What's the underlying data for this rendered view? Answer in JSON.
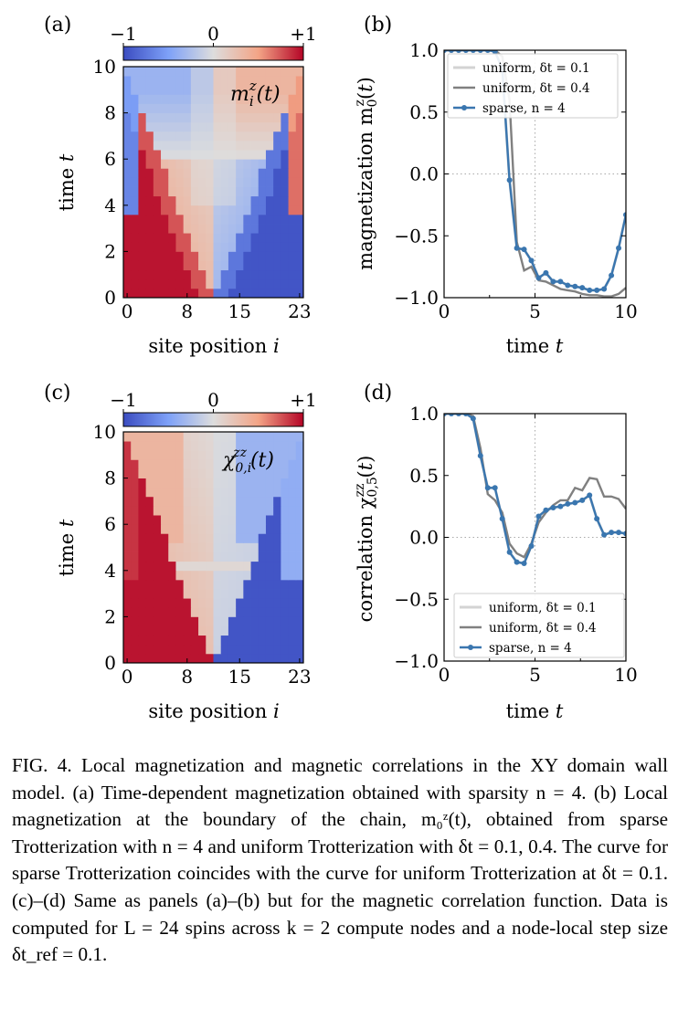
{
  "chart_data": [
    {
      "panel": "(a)",
      "type": "heatmap",
      "label": "m_i^z(t)",
      "xlabel": "site position i",
      "ylabel": "time t",
      "x_ticks": [
        "0",
        "8",
        "15",
        "23"
      ],
      "y_ticks": [
        "0",
        "2",
        "4",
        "6",
        "8",
        "10"
      ],
      "xlim": [
        0,
        23
      ],
      "ylim": [
        0,
        10
      ],
      "colorbar_ticks": [
        "−1",
        "0",
        "+1"
      ],
      "colormap": "coolwarm",
      "colors": {
        "low": "#3b4cc0",
        "mid": "#dddddd",
        "high": "#b40426"
      },
      "description_values": "domain wall: +1 on left half, −1 on right half at t=0; light cone spreading from site 12 with reflections at boundaries"
    },
    {
      "panel": "(b)",
      "type": "line",
      "xlabel": "time t",
      "ylabel": "magnetization m_0^z(t)",
      "xlim": [
        0,
        10
      ],
      "ylim": [
        -1.0,
        1.0
      ],
      "x_ticks": [
        "0",
        "5",
        "10"
      ],
      "y_ticks": [
        "1.0",
        "0.5",
        "0.0",
        "−0.5",
        "−1.0"
      ],
      "grid": "dotted at x=5, y=0",
      "legend": "top-left",
      "series": [
        {
          "name": "uniform, δt = 0.1",
          "color": "#d3d3d3",
          "x": [
            0,
            0.4,
            0.8,
            1.2,
            1.6,
            2.0,
            2.4,
            2.8,
            3.2,
            3.6,
            4.0,
            4.4,
            4.8,
            5.2,
            5.6,
            6.0,
            6.4,
            6.8,
            7.2,
            7.6,
            8.0,
            8.4,
            8.8,
            9.2,
            9.6,
            10.0
          ],
          "y": [
            1,
            1,
            1,
            1,
            1,
            1,
            1,
            0.99,
            0.85,
            -0.05,
            -0.6,
            -0.61,
            -0.7,
            -0.84,
            -0.8,
            -0.87,
            -0.87,
            -0.9,
            -0.91,
            -0.92,
            -0.94,
            -0.94,
            -0.93,
            -0.82,
            -0.6,
            -0.33
          ]
        },
        {
          "name": "uniform, δt = 0.4",
          "color": "#808080",
          "x": [
            0,
            0.4,
            0.8,
            1.2,
            1.6,
            2.0,
            2.4,
            2.8,
            3.2,
            3.6,
            4.0,
            4.4,
            4.8,
            5.2,
            5.6,
            6.0,
            6.4,
            6.8,
            7.2,
            7.6,
            8.0,
            8.4,
            8.8,
            9.2,
            9.6,
            10.0
          ],
          "y": [
            1,
            1,
            1,
            1,
            1,
            1,
            1,
            1,
            0.95,
            0.6,
            -0.55,
            -0.78,
            -0.75,
            -0.86,
            -0.87,
            -0.9,
            -0.93,
            -0.94,
            -0.95,
            -0.97,
            -0.98,
            -0.98,
            -0.99,
            -0.99,
            -0.97,
            -0.92
          ]
        },
        {
          "name": "sparse, n = 4",
          "color": "#3a76af",
          "markers": true,
          "x": [
            0,
            0.4,
            0.8,
            1.2,
            1.6,
            2.0,
            2.4,
            2.8,
            3.2,
            3.6,
            4.0,
            4.4,
            4.8,
            5.2,
            5.6,
            6.0,
            6.4,
            6.8,
            7.2,
            7.6,
            8.0,
            8.4,
            8.8,
            9.2,
            9.6,
            10.0
          ],
          "y": [
            1,
            1,
            1,
            1,
            1,
            1,
            1,
            0.99,
            0.85,
            -0.05,
            -0.6,
            -0.61,
            -0.7,
            -0.84,
            -0.8,
            -0.87,
            -0.87,
            -0.9,
            -0.91,
            -0.92,
            -0.94,
            -0.94,
            -0.93,
            -0.82,
            -0.6,
            -0.33
          ]
        }
      ]
    },
    {
      "panel": "(c)",
      "type": "heatmap",
      "label": "χ_{0,i}^{zz}(t)",
      "xlabel": "site position i",
      "ylabel": "time t",
      "x_ticks": [
        "0",
        "8",
        "15",
        "23"
      ],
      "y_ticks": [
        "0",
        "2",
        "4",
        "6",
        "8",
        "10"
      ],
      "xlim": [
        0,
        23
      ],
      "ylim": [
        0,
        10
      ],
      "colorbar_ticks": [
        "−1",
        "0",
        "+1"
      ],
      "colormap": "coolwarm",
      "colors": {
        "low": "#3b4cc0",
        "mid": "#dddddd",
        "high": "#b40426"
      }
    },
    {
      "panel": "(d)",
      "type": "line",
      "xlabel": "time t",
      "ylabel": "correlation χ_{0,5}^{zz}(t)",
      "xlim": [
        0,
        10
      ],
      "ylim": [
        -1.0,
        1.0
      ],
      "x_ticks": [
        "0",
        "5",
        "10"
      ],
      "y_ticks": [
        "1.0",
        "0.5",
        "0.0",
        "−0.5",
        "−1.0"
      ],
      "grid": "dotted at x=5, y=0",
      "legend": "bottom-right",
      "series": [
        {
          "name": "uniform, δt = 0.1",
          "color": "#d3d3d3",
          "x": [
            0,
            0.4,
            0.8,
            1.2,
            1.6,
            2.0,
            2.4,
            2.8,
            3.2,
            3.6,
            4.0,
            4.4,
            4.8,
            5.2,
            5.6,
            6.0,
            6.4,
            6.8,
            7.2,
            7.6,
            8.0,
            8.4,
            8.8,
            9.2,
            9.6,
            10.0
          ],
          "y": [
            1,
            1,
            1,
            1,
            0.96,
            0.66,
            0.4,
            0.4,
            0.15,
            -0.12,
            -0.2,
            -0.21,
            -0.07,
            0.17,
            0.22,
            0.24,
            0.25,
            0.27,
            0.28,
            0.3,
            0.34,
            0.15,
            0.02,
            0.04,
            0.04,
            0.03
          ]
        },
        {
          "name": "uniform, δt = 0.4",
          "color": "#808080",
          "x": [
            0,
            0.4,
            0.8,
            1.2,
            1.6,
            2.0,
            2.4,
            2.8,
            3.2,
            3.6,
            4.0,
            4.4,
            4.8,
            5.2,
            5.6,
            6.0,
            6.4,
            6.8,
            7.2,
            7.6,
            8.0,
            8.4,
            8.8,
            9.2,
            9.6,
            10.0
          ],
          "y": [
            1,
            1,
            1,
            1,
            0.98,
            0.72,
            0.35,
            0.3,
            0.2,
            -0.05,
            -0.13,
            -0.16,
            -0.05,
            0.12,
            0.2,
            0.26,
            0.3,
            0.3,
            0.4,
            0.38,
            0.48,
            0.47,
            0.33,
            0.33,
            0.31,
            0.23
          ]
        },
        {
          "name": "sparse, n = 4",
          "color": "#3a76af",
          "markers": true,
          "x": [
            0,
            0.4,
            0.8,
            1.2,
            1.6,
            2.0,
            2.4,
            2.8,
            3.2,
            3.6,
            4.0,
            4.4,
            4.8,
            5.2,
            5.6,
            6.0,
            6.4,
            6.8,
            7.2,
            7.6,
            8.0,
            8.4,
            8.8,
            9.2,
            9.6,
            10.0
          ],
          "y": [
            1,
            1,
            1,
            1,
            0.96,
            0.66,
            0.4,
            0.4,
            0.15,
            -0.12,
            -0.2,
            -0.21,
            -0.07,
            0.17,
            0.22,
            0.24,
            0.25,
            0.27,
            0.28,
            0.3,
            0.34,
            0.15,
            0.02,
            0.04,
            0.04,
            0.03
          ]
        }
      ]
    }
  ],
  "caption": "FIG. 4. Local magnetization and magnetic correlations in the XY domain wall model. (a) Time-dependent magnetization obtained with sparsity n = 4. (b) Local magnetization at the boundary of the chain, m₀ᶻ(t), obtained from sparse Trotterization with n = 4 and uniform Trotterization with δt = 0.1, 0.4. The curve for sparse Trotterization coincides with the curve for uniform Trotterization at δt = 0.1. (c)–(d) Same as panels (a)–(b) but for the magnetic correlation function. Data is computed for L = 24 spins across k = 2 compute nodes and a node-local step size δt_ref = 0.1."
}
